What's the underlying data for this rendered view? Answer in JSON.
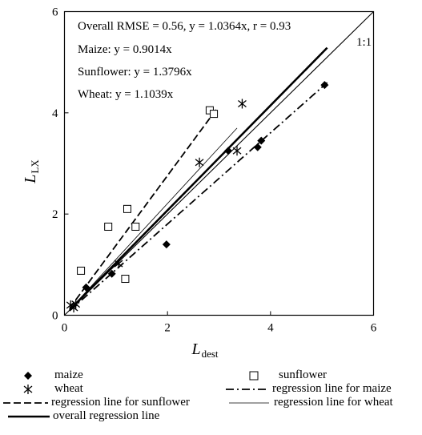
{
  "chart_data": {
    "type": "scatter",
    "xlabel_main": "L",
    "xlabel_sub": "dest",
    "ylabel_main": "L",
    "ylabel_sub": "LX",
    "xlim": [
      0,
      6
    ],
    "ylim": [
      0,
      6
    ],
    "xticks": [
      "0",
      "2",
      "4",
      "6"
    ],
    "yticks": [
      "0",
      "2",
      "4",
      "6"
    ],
    "grid": false,
    "annotations": [
      "Overall RMSE  = 0.56, y = 1.0364x, r = 0.93",
      "Maize: y = 0.9014x",
      "Sunflower: y = 1.3796x",
      "Wheat: y = 1.1039x",
      "1:1"
    ],
    "series": [
      {
        "name": "maize",
        "marker": "filled-diamond",
        "points": [
          [
            0.42,
            0.55
          ],
          [
            0.92,
            0.82
          ],
          [
            1.98,
            1.4
          ],
          [
            3.18,
            3.25
          ],
          [
            3.75,
            3.32
          ],
          [
            3.82,
            3.45
          ],
          [
            5.05,
            4.55
          ]
        ]
      },
      {
        "name": "sunflower",
        "marker": "open-square",
        "points": [
          [
            0.32,
            0.88
          ],
          [
            0.85,
            1.75
          ],
          [
            1.18,
            0.72
          ],
          [
            1.22,
            2.1
          ],
          [
            1.38,
            1.75
          ],
          [
            2.82,
            4.05
          ],
          [
            2.9,
            3.98
          ]
        ]
      },
      {
        "name": "wheat",
        "marker": "asterisk",
        "points": [
          [
            0.12,
            0.2
          ],
          [
            0.18,
            0.15
          ],
          [
            0.22,
            0.22
          ],
          [
            1.05,
            1.02
          ],
          [
            2.62,
            3.02
          ],
          [
            3.35,
            3.25
          ],
          [
            3.45,
            4.18
          ]
        ]
      }
    ],
    "lines": [
      {
        "name": "regression line for maize",
        "style": "dash-dot",
        "slope": 0.9014,
        "x_range": [
          0.1,
          5.1
        ]
      },
      {
        "name": "regression line for sunflower",
        "style": "dash",
        "slope": 1.3796,
        "x_range": [
          0.1,
          2.95
        ]
      },
      {
        "name": "regression line for wheat",
        "style": "thin",
        "slope": 1.1039,
        "x_range": [
          0.1,
          3.35
        ]
      },
      {
        "name": "overall regression line",
        "style": "thick",
        "slope": 1.0364,
        "x_range": [
          0.1,
          5.1
        ]
      },
      {
        "name": "1:1",
        "style": "reference",
        "slope": 1.0,
        "x_range": [
          0,
          6
        ]
      }
    ],
    "legend": {
      "placement": "bottom",
      "entries": [
        {
          "symbol": "filled-diamond",
          "label": "maize"
        },
        {
          "symbol": "open-square",
          "label": "sunflower"
        },
        {
          "symbol": "asterisk",
          "label": "wheat"
        },
        {
          "symbol": "dash-dot",
          "label": "regression line for maize"
        },
        {
          "symbol": "dash",
          "label": "regression line for sunflower"
        },
        {
          "symbol": "thin",
          "label": "regression line for wheat"
        },
        {
          "symbol": "thick",
          "label": "overall regression line"
        }
      ]
    }
  }
}
